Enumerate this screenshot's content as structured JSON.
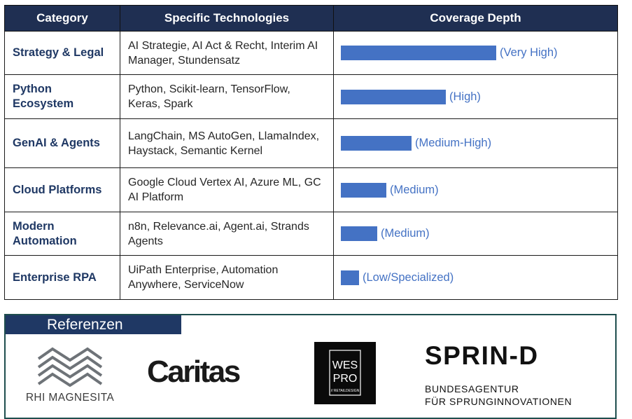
{
  "table": {
    "headers": {
      "category": "Category",
      "technologies": "Specific Technologies",
      "depth": "Coverage Depth"
    },
    "rows": [
      {
        "category": "Strategy & Legal",
        "technologies": "AI Strategie, AI Act & Recht, Interim AI Manager, Stundensatz",
        "depth_label": "(Very High)",
        "depth_fraction": 0.86
      },
      {
        "category": "Python Ecosystem",
        "technologies": "Python, Scikit-learn, TensorFlow, Keras, Spark",
        "depth_label": "(High)",
        "depth_fraction": 0.58
      },
      {
        "category": "GenAI & Agents",
        "technologies": "LangChain, MS AutoGen, LlamaIndex, Haystack, Semantic Kernel",
        "depth_label": "(Medium-High)",
        "depth_fraction": 0.39
      },
      {
        "category": "Cloud Platforms",
        "technologies": "Google Cloud Vertex AI, Azure ML, GC AI Platform",
        "depth_label": "(Medium)",
        "depth_fraction": 0.25
      },
      {
        "category": "Modern Automation",
        "technologies": "n8n, Relevance.ai, Agent.ai, Strands Agents",
        "depth_label": "(Medium)",
        "depth_fraction": 0.2
      },
      {
        "category": "Enterprise RPA",
        "technologies": "UiPath Enterprise, Automation Anywhere, ServiceNow",
        "depth_label": "(Low/Specialized)",
        "depth_fraction": 0.1
      }
    ]
  },
  "references": {
    "title": "Referenzen",
    "logos": {
      "rhi": "RHI MAGNESITA",
      "caritas": "Caritas",
      "wespro_line1": "WES",
      "wespro_line2": "PRO",
      "wespro_tag": "// RETAILDESIGN",
      "sprind": "SPRIN-D",
      "sprind_sub1": "BUNDESAGENTUR",
      "sprind_sub2": "FÜR SPRUNGINNOVATIONEN"
    }
  },
  "colors": {
    "header_bg": "#1f2f52",
    "bar": "#4472c4",
    "category_text": "#1f3864",
    "ref_tab": "#1f3864"
  }
}
